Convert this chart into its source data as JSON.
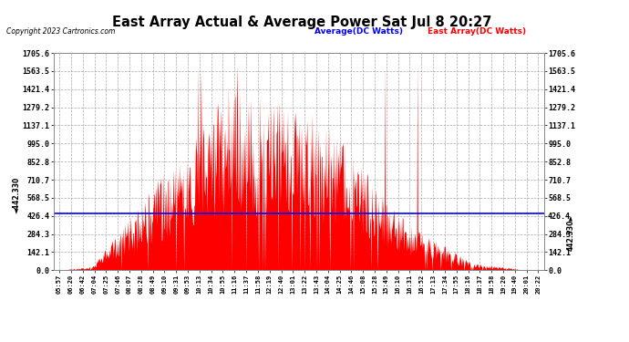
{
  "title": "East Array Actual & Average Power Sat Jul 8 20:27",
  "copyright": "Copyright 2023 Cartronics.com",
  "legend_avg": "Average(DC Watts)",
  "legend_east": "East Array(DC Watts)",
  "average_value": 442.33,
  "y_max": 1705.6,
  "y_min": 0.0,
  "y_ticks": [
    0.0,
    142.1,
    284.3,
    426.4,
    568.5,
    710.7,
    852.8,
    995.0,
    1137.1,
    1279.2,
    1421.4,
    1563.5,
    1705.6
  ],
  "x_labels": [
    "05:57",
    "06:20",
    "06:42",
    "07:04",
    "07:25",
    "07:46",
    "08:07",
    "08:28",
    "08:49",
    "09:10",
    "09:31",
    "09:53",
    "10:13",
    "10:34",
    "10:55",
    "11:16",
    "11:37",
    "11:58",
    "12:19",
    "12:40",
    "13:01",
    "13:22",
    "13:43",
    "14:04",
    "14:25",
    "14:46",
    "15:08",
    "15:28",
    "15:49",
    "16:10",
    "16:31",
    "16:52",
    "17:13",
    "17:34",
    "17:55",
    "18:16",
    "18:37",
    "18:58",
    "19:20",
    "19:40",
    "20:01",
    "20:22"
  ],
  "avg_line_color": "#0000ff",
  "fill_color": "#ff0000",
  "fill_edge_color": "#ff0000",
  "bg_color": "#ffffff",
  "grid_color": "#aaaaaa",
  "title_color": "#000000",
  "copyright_color": "#000000",
  "avg_label_color": "#0000ff",
  "east_label_color": "#ff0000"
}
